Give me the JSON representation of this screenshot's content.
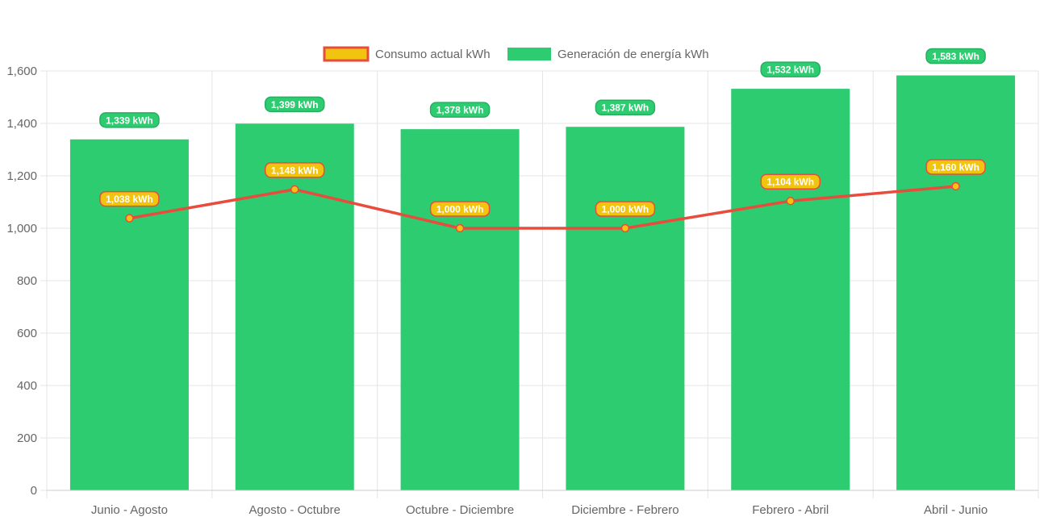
{
  "chart_data": {
    "type": "bar",
    "title": "",
    "xlabel": "",
    "ylabel": "",
    "categories": [
      "Junio - Agosto",
      "Agosto - Octubre",
      "Octubre - Diciembre",
      "Diciembre - Febrero",
      "Febrero - Abril",
      "Abril - Junio"
    ],
    "ylim": [
      0,
      1600
    ],
    "yticks": [
      0,
      200,
      400,
      600,
      800,
      1000,
      1200,
      1400,
      1600
    ],
    "ytick_labels": [
      "0",
      "200",
      "400",
      "600",
      "800",
      "1,000",
      "1,200",
      "1,400",
      "1,600"
    ],
    "grid": true,
    "legend_position": "top",
    "series": [
      {
        "name": "Consumo actual kWh",
        "type": "line",
        "values": [
          1038,
          1148,
          1000,
          1000,
          1104,
          1160
        ],
        "labels": [
          "1,038 kWh",
          "1,148 kWh",
          "1,000 kWh",
          "1,000 kWh",
          "1,104 kWh",
          "1,160 kWh"
        ],
        "line_color": "#e74c3c",
        "fill_color": "#f1c40f"
      },
      {
        "name": "Generación de energía kWh",
        "type": "bar",
        "values": [
          1339,
          1399,
          1378,
          1387,
          1532,
          1583
        ],
        "labels": [
          "1,339 kWh",
          "1,399 kWh",
          "1,378 kWh",
          "1,387 kWh",
          "1,532 kWh",
          "1,583 kWh"
        ],
        "color": "#2ecc71",
        "label_border_color": "#27ae60"
      }
    ]
  },
  "colors": {
    "grid": "#e5e5e5",
    "axis_text": "#666666"
  }
}
